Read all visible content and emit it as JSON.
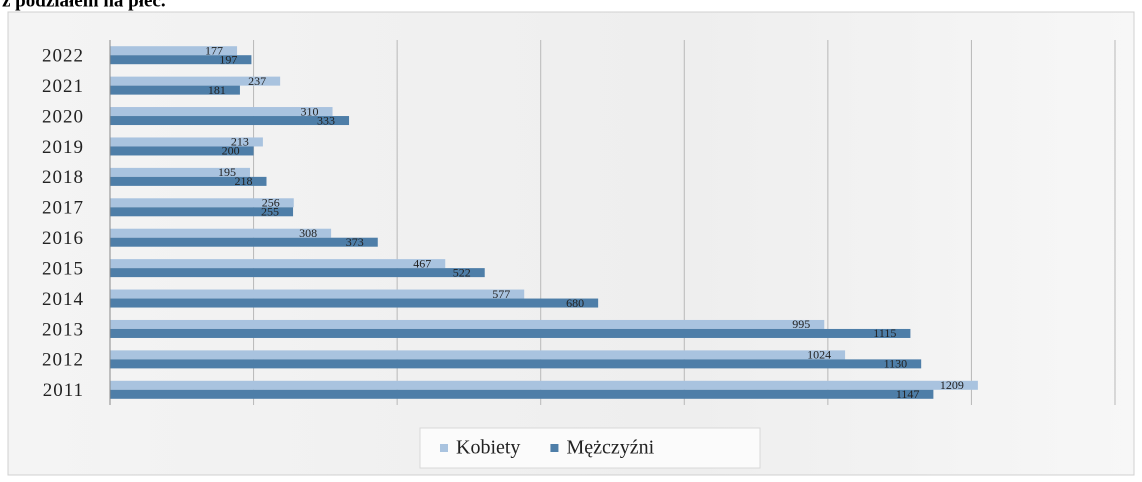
{
  "chart_data": {
    "type": "bar",
    "orientation": "horizontal",
    "title": "z podziałem na płeć.",
    "categories": [
      "2022",
      "2021",
      "2020",
      "2019",
      "2018",
      "2017",
      "2016",
      "2015",
      "2014",
      "2013",
      "2012",
      "2011"
    ],
    "series": [
      {
        "name": "Kobiety",
        "color": "#a9c3df",
        "values": [
          177,
          237,
          310,
          213,
          195,
          256,
          308,
          467,
          577,
          995,
          1024,
          1209
        ]
      },
      {
        "name": "Mężczyźni",
        "color": "#4e7ea8",
        "values": [
          197,
          181,
          333,
          200,
          218,
          255,
          373,
          522,
          680,
          1115,
          1130,
          1147
        ]
      }
    ],
    "xlim": [
      0,
      1400
    ],
    "xticks": [
      0,
      200,
      400,
      600,
      800,
      1000,
      1200,
      1400
    ],
    "grid": true,
    "legend": "bottom"
  }
}
